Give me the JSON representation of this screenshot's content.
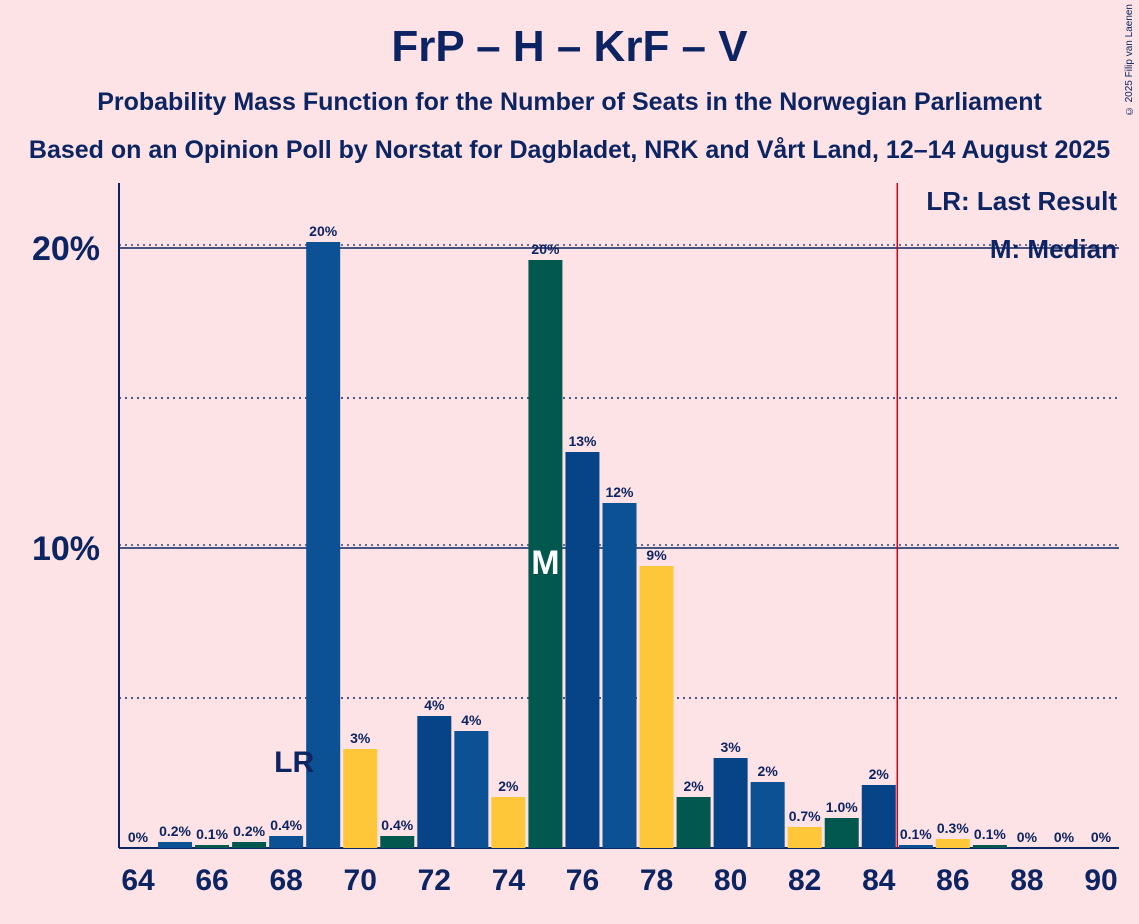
{
  "title": "FrP – H – KrF – V",
  "subtitle": "Probability Mass Function for the Number of Seats in the Norwegian Parliament",
  "subtitle2": "Based on an Opinion Poll by Norstat for Dagbladet, NRK and Vårt Land, 12–14 August 2025",
  "copyright": "© 2025 Filip van Laenen",
  "chart_data": {
    "type": "bar",
    "x": [
      64,
      65,
      66,
      67,
      68,
      69,
      70,
      71,
      72,
      73,
      74,
      75,
      76,
      77,
      78,
      79,
      80,
      81,
      82,
      83,
      84,
      85,
      86,
      87,
      88,
      89,
      90
    ],
    "values": [
      0,
      0.2,
      0.1,
      0.2,
      0.4,
      20.2,
      3.3,
      0.4,
      4.4,
      3.9,
      1.7,
      19.6,
      13.2,
      11.5,
      9.4,
      1.7,
      3.0,
      2.2,
      0.7,
      1.0,
      2.1,
      0.1,
      0.3,
      0.1,
      0,
      0,
      0
    ],
    "labels": [
      "0%",
      "0.2%",
      "0.1%",
      "0.2%",
      "0.4%",
      "20%",
      "3%",
      "0.4%",
      "4%",
      "4%",
      "2%",
      "20%",
      "13%",
      "12%",
      "9%",
      "2%",
      "3%",
      "2%",
      "0.7%",
      "1.0%",
      "2%",
      "0.1%",
      "0.3%",
      "0.1%",
      "0%",
      "0%",
      "0%"
    ],
    "colors": [
      "#02584f",
      "#0b5194",
      "#02584f",
      "#02584f",
      "#0b5194",
      "#0b5194",
      "#fec73a",
      "#02584f",
      "#074487",
      "#0b5194",
      "#fec73a",
      "#02584f",
      "#074487",
      "#0b5194",
      "#fec73a",
      "#02584f",
      "#074487",
      "#0b5194",
      "#fec73a",
      "#02584f",
      "#074487",
      "#0b5194",
      "#fec73a",
      "#02584f",
      "#074487",
      "#0b5194",
      "#fec73a"
    ],
    "xticks": [
      64,
      66,
      68,
      70,
      72,
      74,
      76,
      78,
      80,
      82,
      84,
      86,
      88,
      90
    ],
    "yticks": [
      {
        "value": 10,
        "label": "10%"
      },
      {
        "value": 20,
        "label": "20%"
      }
    ],
    "ygrid_minor": [
      5,
      15
    ],
    "ylim": [
      0,
      22
    ],
    "last_result": {
      "seat": 68,
      "label": "LR"
    },
    "median": {
      "seat": 75,
      "label": "M"
    },
    "majority_line": 84.5,
    "legend": [
      "LR: Last Result",
      "M: Median"
    ],
    "legend_position": "top-right",
    "accent": "#0c2461",
    "background": "#fde3e6",
    "majority_color": "#d0021b"
  }
}
